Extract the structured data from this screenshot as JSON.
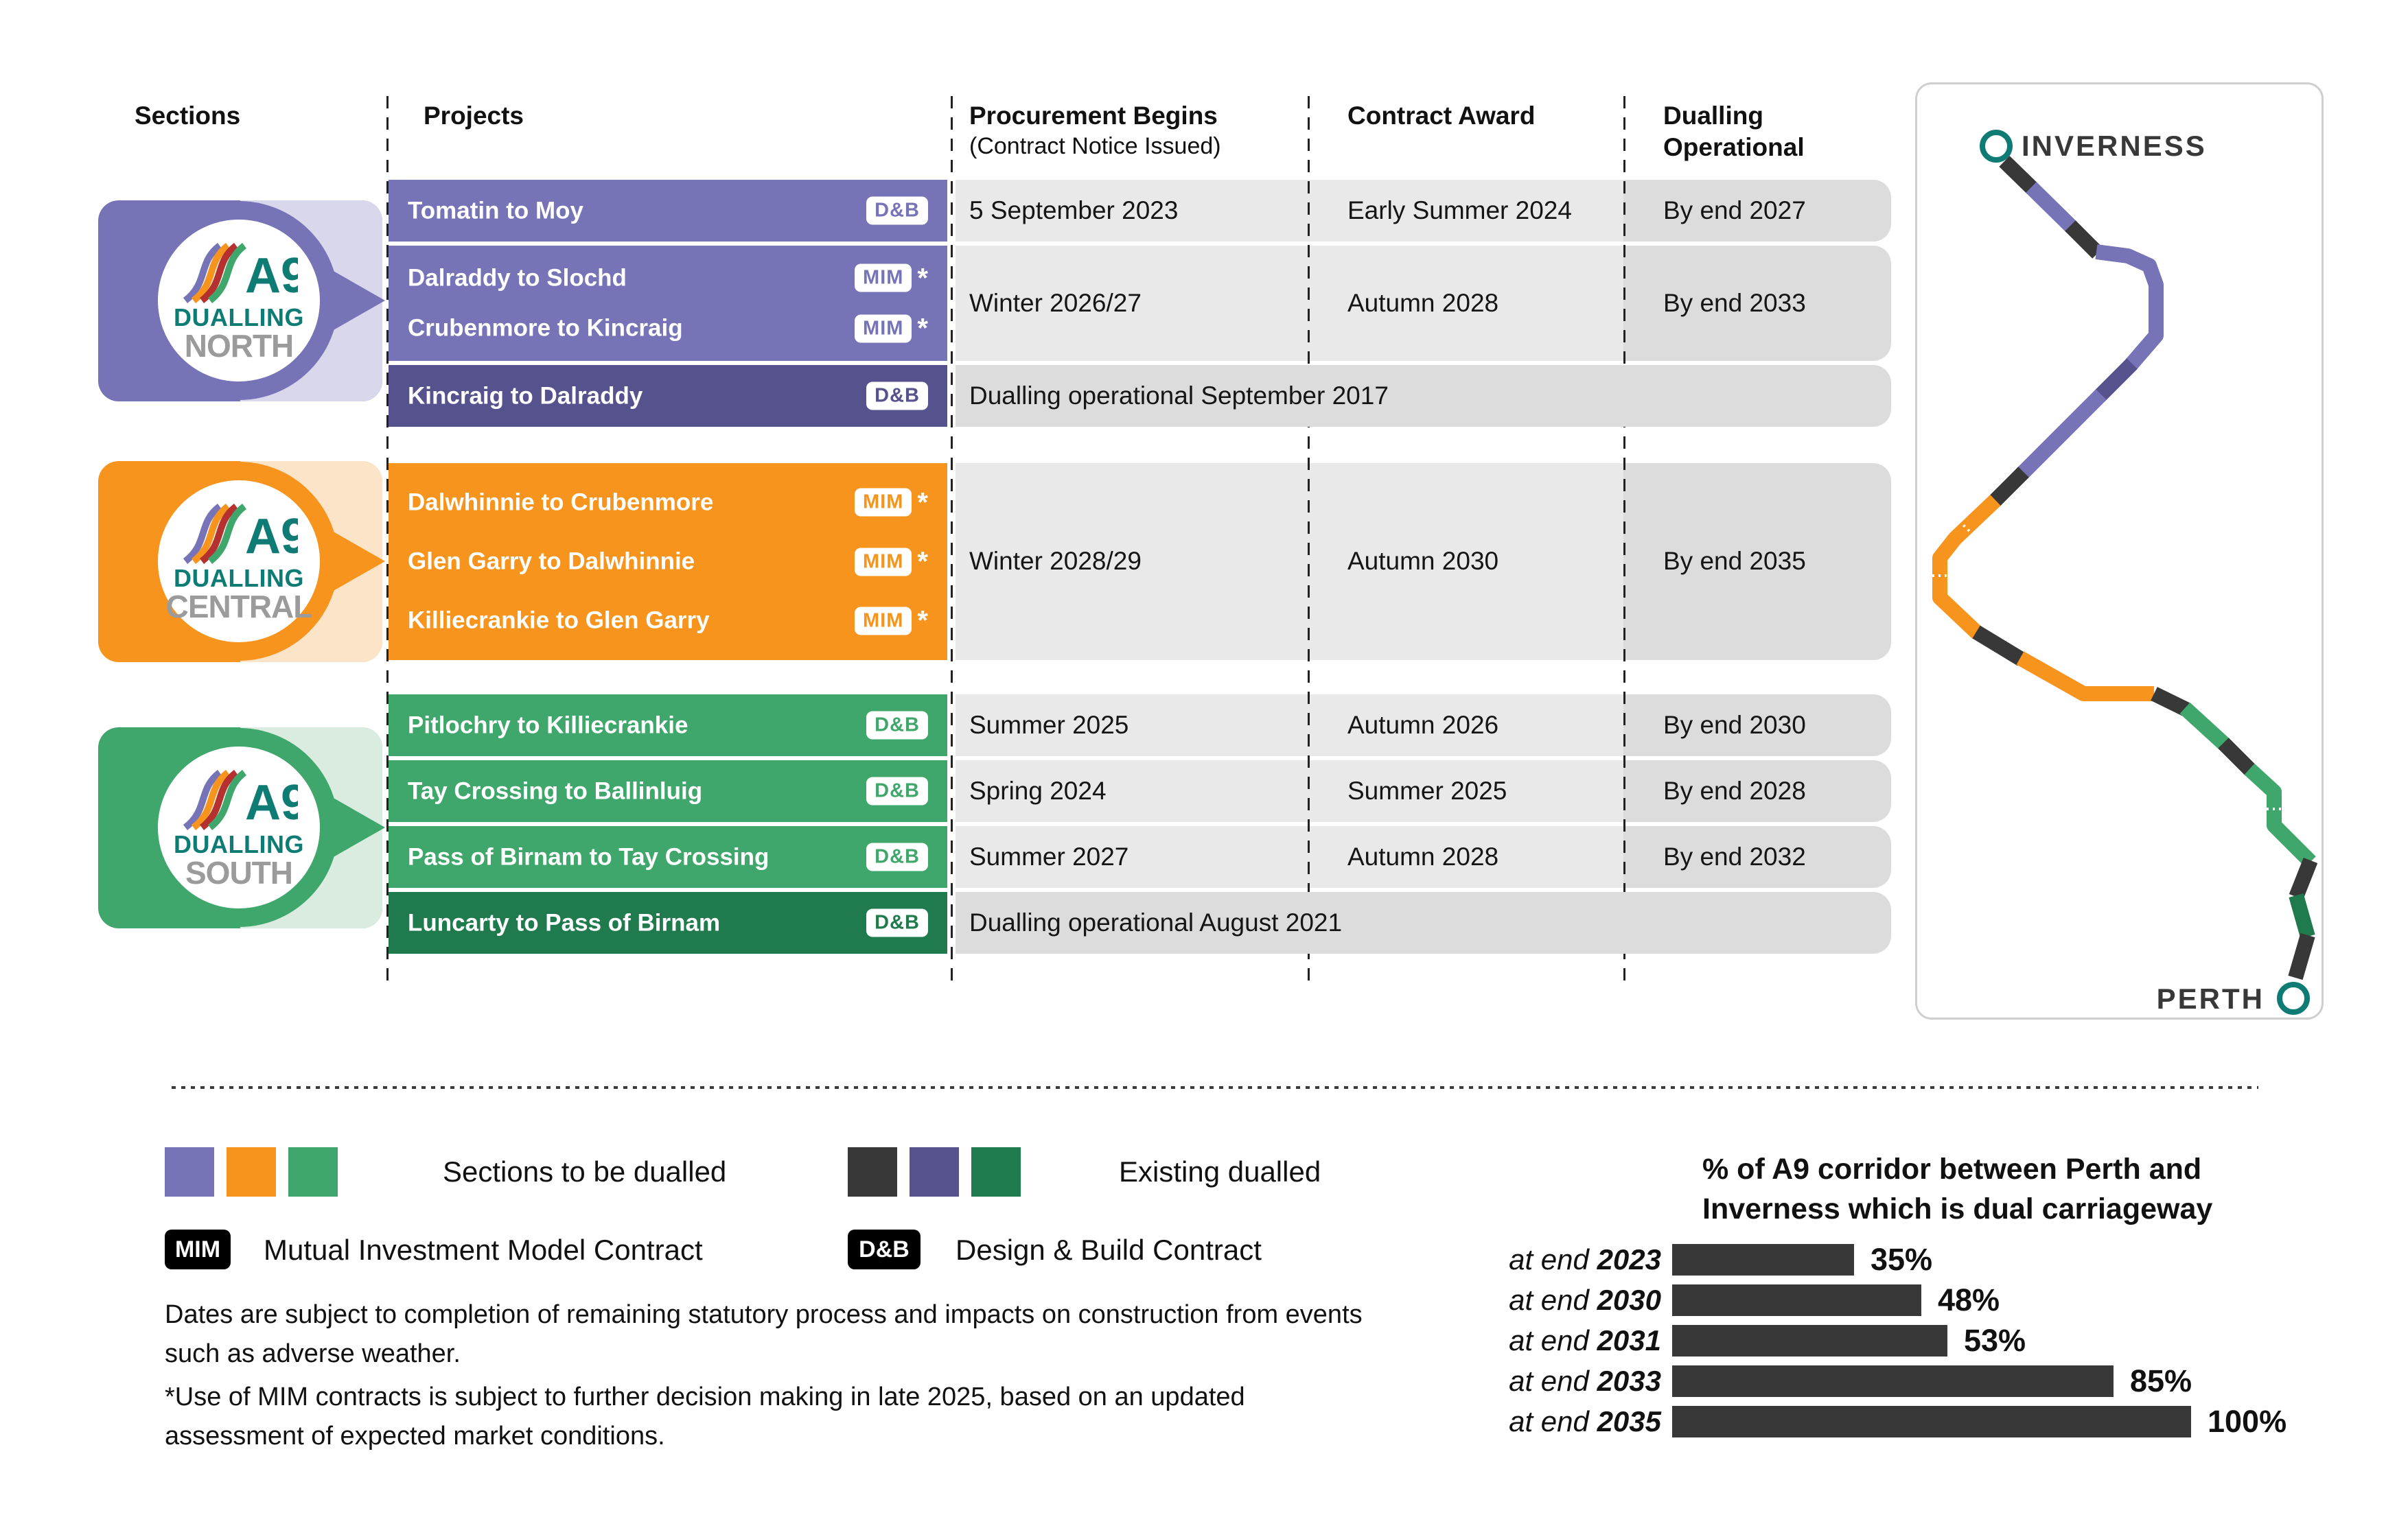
{
  "colors": {
    "purple": "#7673B6",
    "dark_purple": "#55528D",
    "orange": "#F7941E",
    "green": "#3FA76B",
    "dark_green": "#1F7A4D",
    "dark_grey": "#383838",
    "teal": "#0E7B74",
    "tint_purple": "#D8D7EC",
    "tint_orange": "#FCE4C8",
    "tint_green": "#DAEBDF",
    "cell_grey": "#E9E9E9",
    "cell_grey_dark": "#DCDCDC"
  },
  "table": {
    "headers": {
      "sections": "Sections",
      "projects": "Projects",
      "procurement_line1": "Procurement Begins",
      "procurement_line2": "(Contract Notice Issued)",
      "award": "Contract Award",
      "operational_line1": "Dualling",
      "operational_line2": "Operational"
    },
    "north": {
      "row1": {
        "project": "Tomatin to Moy",
        "contract": "D&B",
        "procurement": "5 September 2023",
        "award": "Early Summer 2024",
        "operational": "By end 2027"
      },
      "row2": {
        "project_a": "Dalraddy to Slochd",
        "project_b": "Crubenmore to Kincraig",
        "contract": "MIM",
        "star": "*",
        "procurement": "Winter 2026/27",
        "award": "Autumn 2028",
        "operational": "By end 2033"
      },
      "row3": {
        "project": "Kincraig to Dalraddy",
        "contract": "D&B",
        "status": "Dualling operational September 2017"
      }
    },
    "central": {
      "row": {
        "project_a": "Dalwhinnie to Crubenmore",
        "project_b": "Glen Garry to Dalwhinnie",
        "project_c": "Killiecrankie to Glen Garry",
        "contract": "MIM",
        "star": "*",
        "procurement": "Winter 2028/29",
        "award": "Autumn 2030",
        "operational": "By end 2035"
      }
    },
    "south": {
      "row1": {
        "project": "Pitlochry to Killiecrankie",
        "contract": "D&B",
        "procurement": "Summer 2025",
        "award": "Autumn 2026",
        "operational": "By end 2030"
      },
      "row2": {
        "project": "Tay Crossing to Ballinluig",
        "contract": "D&B",
        "procurement": "Spring 2024",
        "award": "Summer 2025",
        "operational": "By end 2028"
      },
      "row3": {
        "project": "Pass of Birnam to Tay Crossing",
        "contract": "D&B",
        "procurement": "Summer 2027",
        "award": "Autumn 2028",
        "operational": "By end 2032"
      },
      "row4": {
        "project": "Luncarty to Pass of Birnam",
        "contract": "D&B",
        "status": "Dualling operational August 2021"
      }
    }
  },
  "badges": {
    "logo": "A9",
    "north": {
      "line1": "DUALLING",
      "line2": "NORTH"
    },
    "central": {
      "line1": "DUALLING",
      "line2": "CENTRAL"
    },
    "south": {
      "line1": "DUALLING",
      "line2": "SOUTH"
    }
  },
  "map": {
    "top": "INVERNESS",
    "bottom": "PERTH"
  },
  "legend": {
    "to_be_dualled": "Sections to be dualled",
    "existing_dualled": "Existing dualled",
    "mim_badge": "MIM",
    "mim_text": "Mutual Investment Model Contract",
    "db_badge": "D&B",
    "db_text": "Design & Build Contract"
  },
  "notes": {
    "note1": "Dates are subject to completion of remaining statutory process and impacts on construction from events such as adverse weather.",
    "note2": "*Use of MIM contracts is subject to further decision making in late 2025, based on an updated assessment of expected market conditions."
  },
  "chart_data": {
    "type": "bar",
    "orientation": "horizontal",
    "title": "% of A9 corridor between Perth and Inverness which is dual carriageway",
    "title_lines": [
      "% of A9 corridor between Perth and",
      "Inverness which is dual carriageway"
    ],
    "prefix": "at end",
    "years": [
      "2023",
      "2030",
      "2031",
      "2033",
      "2035"
    ],
    "categories": [
      "at end 2023",
      "at end 2030",
      "at end 2031",
      "at end 2033",
      "at end 2035"
    ],
    "values": [
      35,
      48,
      53,
      85,
      100
    ],
    "value_labels": [
      "35%",
      "48%",
      "53%",
      "85%",
      "100%"
    ],
    "xlim": [
      0,
      100
    ],
    "bar_color": "#383838",
    "grid": false,
    "legend": false
  }
}
